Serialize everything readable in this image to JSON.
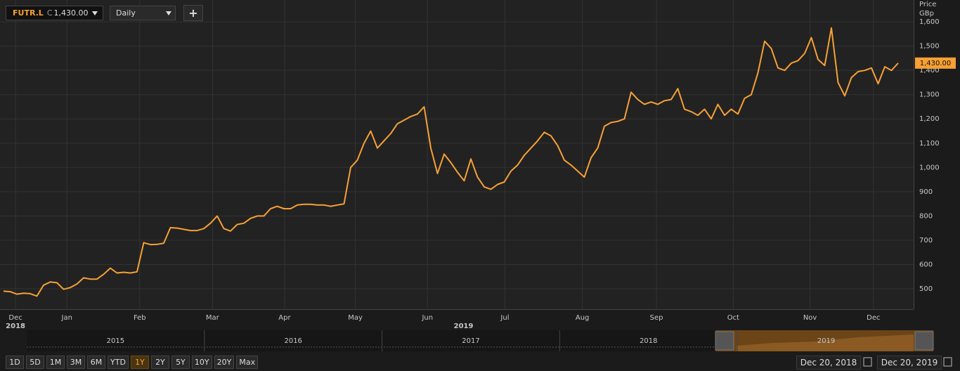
{
  "toolbar": {
    "symbol": "FUTR.L",
    "close_prefix": "C",
    "close": "1,430.00",
    "interval": "Daily",
    "add": "+"
  },
  "chart_data": {
    "type": "line",
    "y_axis_title": "Price",
    "y_axis_unit": "GBp",
    "series": [
      {
        "color": "#f7a035",
        "values": [
          490,
          488,
          478,
          482,
          480,
          470,
          515,
          528,
          525,
          498,
          505,
          520,
          545,
          540,
          540,
          560,
          585,
          565,
          568,
          565,
          570,
          690,
          682,
          683,
          688,
          752,
          750,
          745,
          740,
          740,
          748,
          770,
          800,
          748,
          738,
          765,
          770,
          790,
          800,
          800,
          830,
          840,
          830,
          830,
          845,
          848,
          848,
          845,
          845,
          840,
          845,
          850,
          1000,
          1030,
          1100,
          1150,
          1080,
          1110,
          1140,
          1180,
          1195,
          1210,
          1220,
          1250,
          1080,
          975,
          1055,
          1020,
          980,
          945,
          1035,
          960,
          920,
          910,
          930,
          940,
          985,
          1010,
          1050,
          1080,
          1110,
          1145,
          1130,
          1090,
          1030,
          1010,
          985,
          960,
          1040,
          1080,
          1170,
          1185,
          1190,
          1200,
          1310,
          1280,
          1260,
          1270,
          1260,
          1275,
          1280,
          1325,
          1240,
          1230,
          1215,
          1240,
          1200,
          1260,
          1215,
          1240,
          1220,
          1285,
          1300,
          1390,
          1520,
          1490,
          1410,
          1400,
          1430,
          1440,
          1470,
          1535,
          1445,
          1420,
          1575,
          1350,
          1295,
          1370,
          1395,
          1400,
          1410,
          1345,
          1415,
          1400,
          1430
        ]
      }
    ],
    "last_value_label": {
      "value": 1430,
      "label": "1,430.00"
    },
    "ylim": [
      416,
      1690
    ],
    "yticks": [
      500,
      600,
      700,
      800,
      900,
      {
        "value": 1000,
        "label": "1,000"
      },
      {
        "value": 1100,
        "label": "1,100"
      },
      {
        "value": 1200,
        "label": "1,200"
      },
      {
        "value": 1300,
        "label": "1,300"
      },
      {
        "value": 1400,
        "label": "1,400"
      },
      {
        "value": 1500,
        "label": "1,500"
      },
      {
        "value": 1600,
        "label": "1,600"
      }
    ],
    "xlim": [
      0,
      134
    ],
    "xticks": [
      {
        "value": 1.8,
        "label": "Dec"
      },
      {
        "value": 9.5,
        "label": "Jan"
      },
      {
        "value": 20.4,
        "label": "Feb"
      },
      {
        "value": 31.3,
        "label": "Mar"
      },
      {
        "value": 42.1,
        "label": "Apr"
      },
      {
        "value": 52.7,
        "label": "May"
      },
      {
        "value": 63.5,
        "label": "Jun"
      },
      {
        "value": 75.1,
        "label": "Jul"
      },
      {
        "value": 86.7,
        "label": "Aug"
      },
      {
        "value": 97.8,
        "label": "Sep"
      },
      {
        "value": 109.3,
        "label": "Oct"
      },
      {
        "value": 120.8,
        "label": "Nov"
      },
      {
        "value": 130.3,
        "label": "Dec"
      }
    ],
    "year_labels": [
      {
        "value": 1.8,
        "label": "2018"
      },
      {
        "value": 68.9,
        "label": "2019"
      }
    ],
    "grid": true
  },
  "navigator": {
    "years": [
      "2015",
      "2016",
      "2017",
      "2018",
      "2019"
    ]
  },
  "range_buttons": [
    "1D",
    "5D",
    "1M",
    "3M",
    "6M",
    "YTD",
    "1Y",
    "2Y",
    "5Y",
    "10Y",
    "20Y",
    "Max"
  ],
  "active_range": "1Y",
  "date_from": "Dec 20, 2018",
  "date_to": "Dec 20, 2019"
}
